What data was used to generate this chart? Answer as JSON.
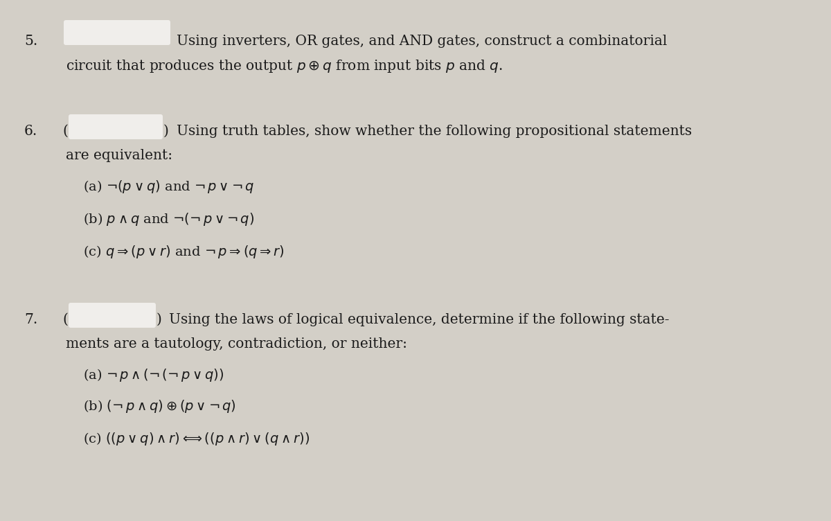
{
  "background_color": "#d3cfc7",
  "text_color": "#1a1a1a",
  "white_box_color": "#f0eeeb",
  "fig_width": 12.0,
  "fig_height": 7.52,
  "dpi": 100,
  "q5_number": "5.",
  "q5_line1": "Using inverters, OR gates, and AND gates, construct a combinatorial",
  "q5_line2": "circuit that produces the output $p \\oplus q$ from input bits $p$ and $q$.",
  "q6_number": "6.",
  "q6_intro": "Using truth tables, show whether the following propositional statements",
  "q6_intro2": "are equivalent:",
  "q6a": "(a) $\\neg(p \\vee q)$ and $\\neg\\, p \\vee \\neg\\, q$",
  "q6b": "(b) $p \\wedge q$ and $\\neg(\\neg\\, p \\vee \\neg\\, q)$",
  "q6c": "(c) $q \\Rightarrow (p \\vee r)$ and $\\neg\\, p \\Rightarrow (q \\Rightarrow r)$",
  "q7_number": "7.",
  "q7_intro": "Using the laws of logical equivalence, determine if the following state-",
  "q7_intro2": "ments are a tautology, contradiction, or neither:",
  "q7a": "(a) $\\neg\\, p \\wedge (\\neg\\,(\\neg\\, p \\vee q))$",
  "q7b": "(b) $(\\neg\\, p \\wedge q) \\oplus (p \\vee \\neg\\, q)$",
  "q7c": "(c) $((p \\vee q) \\wedge r) \\Longleftrightarrow ((p \\wedge r) \\vee (q \\wedge r))$",
  "font_size": 14.5,
  "font_size_sub": 14.0
}
